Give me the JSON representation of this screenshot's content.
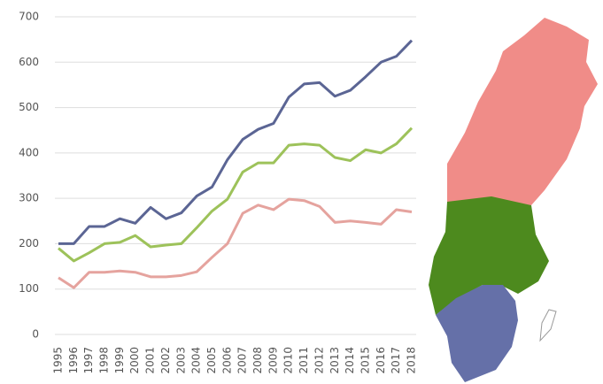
{
  "chart_data": {
    "type": "line",
    "x": [
      "1995",
      "1996",
      "1997",
      "1998",
      "1999",
      "2000",
      "2001",
      "2002",
      "2003",
      "2004",
      "2005",
      "2006",
      "2007",
      "2008",
      "2009",
      "2010",
      "2011",
      "2012",
      "2013",
      "2014",
      "2015",
      "2016",
      "2017",
      "2018"
    ],
    "series": [
      {
        "color": "#5b6594",
        "values": [
          200,
          200,
          238,
          238,
          255,
          245,
          280,
          255,
          268,
          305,
          325,
          385,
          430,
          452,
          465,
          523,
          552,
          555,
          525,
          538,
          568,
          600,
          613,
          648
        ]
      },
      {
        "color": "#9dc25a",
        "values": [
          190,
          162,
          180,
          200,
          203,
          218,
          193,
          197,
          200,
          235,
          272,
          298,
          358,
          378,
          378,
          417,
          420,
          417,
          390,
          383,
          407,
          400,
          420,
          455
        ]
      },
      {
        "color": "#e5a39e",
        "values": [
          125,
          103,
          137,
          137,
          140,
          137,
          127,
          127,
          130,
          138,
          170,
          200,
          267,
          285,
          275,
          298,
          295,
          282,
          247,
          250,
          247,
          243,
          275,
          270
        ]
      }
    ],
    "ylim": [
      0,
      700
    ],
    "yticks": [
      0,
      100,
      200,
      300,
      400,
      500,
      600,
      700
    ],
    "grid": true
  }
}
